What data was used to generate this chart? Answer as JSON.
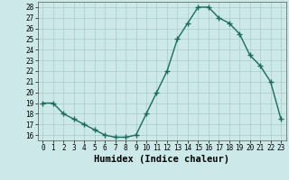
{
  "x": [
    0,
    1,
    2,
    3,
    4,
    5,
    6,
    7,
    8,
    9,
    10,
    11,
    12,
    13,
    14,
    15,
    16,
    17,
    18,
    19,
    20,
    21,
    22,
    23
  ],
  "y": [
    19.0,
    19.0,
    18.0,
    17.5,
    17.0,
    16.5,
    16.0,
    15.8,
    15.8,
    16.0,
    18.0,
    20.0,
    22.0,
    25.0,
    26.5,
    28.0,
    28.0,
    27.0,
    26.5,
    25.5,
    23.5,
    22.5,
    21.0,
    17.5
  ],
  "line_color": "#1a6b5e",
  "marker": "+",
  "marker_size": 4,
  "bg_color": "#cce8e8",
  "grid_color": "#aacccc",
  "xlabel": "Humidex (Indice chaleur)",
  "xlim": [
    -0.5,
    23.5
  ],
  "ylim": [
    15.5,
    28.5
  ],
  "yticks": [
    16,
    17,
    18,
    19,
    20,
    21,
    22,
    23,
    24,
    25,
    26,
    27,
    28
  ],
  "xticks": [
    0,
    1,
    2,
    3,
    4,
    5,
    6,
    7,
    8,
    9,
    10,
    11,
    12,
    13,
    14,
    15,
    16,
    17,
    18,
    19,
    20,
    21,
    22,
    23
  ],
  "xtick_labels": [
    "0",
    "1",
    "2",
    "3",
    "4",
    "5",
    "6",
    "7",
    "8",
    "9",
    "10",
    "11",
    "12",
    "13",
    "14",
    "15",
    "16",
    "17",
    "18",
    "19",
    "20",
    "21",
    "22",
    "23"
  ],
  "tick_fontsize": 5.5,
  "xlabel_fontsize": 7.5,
  "line_width": 1.0
}
